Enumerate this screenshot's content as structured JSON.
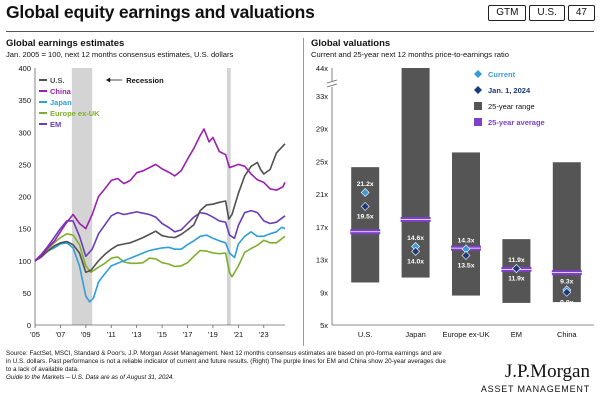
{
  "header": {
    "title": "Global equity earnings and valuations",
    "chips": [
      "GTM",
      "U.S.",
      "47"
    ]
  },
  "left_panel": {
    "title": "Global earnings estimates",
    "subtitle": "Jan. 2005 = 100, next 12 months consensus estimates, U.S. dollars"
  },
  "right_panel": {
    "title": "Global valuations",
    "subtitle": "Current and 25-year next 12 months price-to-earnings ratio"
  },
  "footer": {
    "source": "Source: FactSet, MSCI, Standard & Poor's, J.P. Morgan Asset Management. Next 12 months consensus estimates are based on pro-forma earnings and are in U.S. dollars. Past performance is not a reliable indicator of current and future results. (Right) The purple lines for EM and China show 20-year averages due to a lack of available data.",
    "guide": "Guide to the Markets – U.S. Data are as of August 31, 2024."
  },
  "logo": {
    "line1": "J.P.Morgan",
    "line2": "ASSET MANAGEMENT"
  },
  "colors": {
    "us": "#505050",
    "china": "#9b1fb0",
    "japan": "#2f9ed9",
    "europe": "#7fae2e",
    "em": "#6a3db8",
    "bar": "#555555",
    "avg": "#7e3fc9",
    "current": "#3a9ad9",
    "jan2024": "#1b3a7a",
    "recession": "#d4d4d4"
  },
  "chart_data": [
    {
      "type": "line",
      "title": "Global earnings estimates",
      "x_ticks": [
        "'05",
        "'07",
        "'09",
        "'11",
        "'13",
        "'15",
        "'17",
        "'19",
        "'21",
        "'23"
      ],
      "xlim": [
        2005,
        2024.67
      ],
      "ylim": [
        0,
        400
      ],
      "y_ticks": [
        0,
        50,
        100,
        150,
        200,
        250,
        300,
        350,
        400
      ],
      "grid": false,
      "legend_position": "top-left",
      "recession_label": "Recession",
      "recessions": [
        [
          2007.9,
          2009.5
        ],
        [
          2020.1,
          2020.4
        ]
      ],
      "series": [
        {
          "name": "U.S.",
          "key": "us",
          "points": [
            [
              2005,
              100
            ],
            [
              2005.5,
              106
            ],
            [
              2006,
              115
            ],
            [
              2006.5,
              123
            ],
            [
              2007,
              128
            ],
            [
              2007.5,
              130
            ],
            [
              2008,
              125
            ],
            [
              2008.5,
              112
            ],
            [
              2009,
              82
            ],
            [
              2009.4,
              85
            ],
            [
              2010,
              100
            ],
            [
              2010.5,
              110
            ],
            [
              2011,
              118
            ],
            [
              2011.5,
              124
            ],
            [
              2012,
              126
            ],
            [
              2012.5,
              128
            ],
            [
              2013,
              132
            ],
            [
              2013.5,
              136
            ],
            [
              2014,
              141
            ],
            [
              2014.5,
              146
            ],
            [
              2015,
              139
            ],
            [
              2015.5,
              137
            ],
            [
              2016,
              136
            ],
            [
              2016.5,
              141
            ],
            [
              2017,
              148
            ],
            [
              2017.5,
              156
            ],
            [
              2018,
              178
            ],
            [
              2018.5,
              187
            ],
            [
              2019,
              188
            ],
            [
              2019.5,
              191
            ],
            [
              2020,
              193
            ],
            [
              2020.25,
              165
            ],
            [
              2020.5,
              172
            ],
            [
              2021,
              205
            ],
            [
              2021.5,
              232
            ],
            [
              2022,
              247
            ],
            [
              2022.5,
              253
            ],
            [
              2022.75,
              242
            ],
            [
              2023,
              235
            ],
            [
              2023.5,
              242
            ],
            [
              2024,
              268
            ],
            [
              2024.67,
              282
            ]
          ]
        },
        {
          "name": "China",
          "key": "china",
          "points": [
            [
              2005,
              100
            ],
            [
              2005.5,
              108
            ],
            [
              2006,
              120
            ],
            [
              2006.5,
              130
            ],
            [
              2007,
              145
            ],
            [
              2007.5,
              160
            ],
            [
              2008,
              172
            ],
            [
              2008.5,
              158
            ],
            [
              2009,
              150
            ],
            [
              2009.5,
              172
            ],
            [
              2010,
              200
            ],
            [
              2010.5,
              212
            ],
            [
              2011,
              225
            ],
            [
              2011.5,
              228
            ],
            [
              2012,
              220
            ],
            [
              2012.5,
              225
            ],
            [
              2013,
              237
            ],
            [
              2013.5,
              240
            ],
            [
              2014,
              245
            ],
            [
              2014.5,
              250
            ],
            [
              2015,
              243
            ],
            [
              2015.5,
              238
            ],
            [
              2016,
              232
            ],
            [
              2016.5,
              240
            ],
            [
              2017,
              258
            ],
            [
              2017.5,
              275
            ],
            [
              2018,
              295
            ],
            [
              2018.3,
              305
            ],
            [
              2018.7,
              285
            ],
            [
              2019,
              292
            ],
            [
              2019.5,
              270
            ],
            [
              2020,
              265
            ],
            [
              2020.3,
              245
            ],
            [
              2021,
              250
            ],
            [
              2021.5,
              247
            ],
            [
              2022,
              235
            ],
            [
              2022.5,
              226
            ],
            [
              2023,
              222
            ],
            [
              2023.5,
              212
            ],
            [
              2024,
              210
            ],
            [
              2024.5,
              215
            ],
            [
              2024.67,
              222
            ]
          ]
        },
        {
          "name": "Japan",
          "key": "japan",
          "points": [
            [
              2005,
              100
            ],
            [
              2005.5,
              106
            ],
            [
              2006,
              115
            ],
            [
              2006.5,
              120
            ],
            [
              2007,
              126
            ],
            [
              2007.5,
              128
            ],
            [
              2008,
              120
            ],
            [
              2008.5,
              92
            ],
            [
              2009,
              45
            ],
            [
              2009.3,
              36
            ],
            [
              2009.6,
              42
            ],
            [
              2010,
              67
            ],
            [
              2010.5,
              80
            ],
            [
              2011,
              92
            ],
            [
              2011.5,
              96
            ],
            [
              2012,
              100
            ],
            [
              2012.5,
              104
            ],
            [
              2013,
              108
            ],
            [
              2013.5,
              112
            ],
            [
              2014,
              116
            ],
            [
              2014.5,
              118
            ],
            [
              2015,
              120
            ],
            [
              2015.5,
              121
            ],
            [
              2016,
              118
            ],
            [
              2016.5,
              118
            ],
            [
              2017,
              125
            ],
            [
              2017.5,
              131
            ],
            [
              2018,
              138
            ],
            [
              2018.5,
              140
            ],
            [
              2019,
              135
            ],
            [
              2019.5,
              131
            ],
            [
              2020,
              128
            ],
            [
              2020.3,
              112
            ],
            [
              2020.7,
              105
            ],
            [
              2021,
              126
            ],
            [
              2021.5,
              138
            ],
            [
              2022,
              145
            ],
            [
              2022.5,
              138
            ],
            [
              2023,
              138
            ],
            [
              2023.5,
              142
            ],
            [
              2024,
              145
            ],
            [
              2024.4,
              152
            ],
            [
              2024.67,
              150
            ]
          ]
        },
        {
          "name": "Europe ex-UK",
          "key": "europe",
          "points": [
            [
              2005,
              100
            ],
            [
              2005.5,
              108
            ],
            [
              2006,
              118
            ],
            [
              2006.5,
              128
            ],
            [
              2007,
              136
            ],
            [
              2007.5,
              142
            ],
            [
              2008,
              140
            ],
            [
              2008.5,
              125
            ],
            [
              2009,
              92
            ],
            [
              2009.4,
              82
            ],
            [
              2010,
              90
            ],
            [
              2010.5,
              96
            ],
            [
              2011,
              104
            ],
            [
              2011.5,
              106
            ],
            [
              2012,
              98
            ],
            [
              2012.5,
              96
            ],
            [
              2013,
              96
            ],
            [
              2013.5,
              97
            ],
            [
              2014,
              104
            ],
            [
              2014.5,
              103
            ],
            [
              2015,
              97
            ],
            [
              2015.5,
              95
            ],
            [
              2016,
              91
            ],
            [
              2016.5,
              92
            ],
            [
              2017,
              97
            ],
            [
              2017.5,
              107
            ],
            [
              2018,
              116
            ],
            [
              2018.5,
              115
            ],
            [
              2019,
              112
            ],
            [
              2019.5,
              111
            ],
            [
              2020,
              112
            ],
            [
              2020.3,
              82
            ],
            [
              2020.5,
              75
            ],
            [
              2021,
              92
            ],
            [
              2021.5,
              113
            ],
            [
              2022,
              119
            ],
            [
              2022.5,
              124
            ],
            [
              2023,
              132
            ],
            [
              2023.5,
              128
            ],
            [
              2024,
              128
            ],
            [
              2024.67,
              138
            ]
          ]
        },
        {
          "name": "EM",
          "key": "em",
          "points": [
            [
              2005,
              100
            ],
            [
              2005.5,
              110
            ],
            [
              2006,
              122
            ],
            [
              2006.5,
              136
            ],
            [
              2007,
              150
            ],
            [
              2007.5,
              162
            ],
            [
              2008,
              162
            ],
            [
              2008.5,
              138
            ],
            [
              2009,
              107
            ],
            [
              2009.5,
              118
            ],
            [
              2010,
              142
            ],
            [
              2010.5,
              156
            ],
            [
              2011,
              170
            ],
            [
              2011.5,
              175
            ],
            [
              2012,
              172
            ],
            [
              2012.5,
              174
            ],
            [
              2013,
              176
            ],
            [
              2013.5,
              174
            ],
            [
              2014,
              172
            ],
            [
              2014.5,
              168
            ],
            [
              2015,
              158
            ],
            [
              2015.5,
              152
            ],
            [
              2016,
              145
            ],
            [
              2016.5,
              148
            ],
            [
              2017,
              158
            ],
            [
              2017.5,
              168
            ],
            [
              2018,
              175
            ],
            [
              2018.5,
              173
            ],
            [
              2019,
              168
            ],
            [
              2019.5,
              162
            ],
            [
              2020,
              160
            ],
            [
              2020.3,
              140
            ],
            [
              2020.7,
              135
            ],
            [
              2021,
              155
            ],
            [
              2021.5,
              175
            ],
            [
              2022,
              178
            ],
            [
              2022.5,
              175
            ],
            [
              2023,
              162
            ],
            [
              2023.5,
              158
            ],
            [
              2024,
              160
            ],
            [
              2024.67,
              170
            ]
          ]
        }
      ]
    },
    {
      "type": "bar",
      "title": "Global valuations",
      "categories": [
        "U.S.",
        "Japan",
        "Europe ex-UK",
        "EM",
        "China"
      ],
      "ylim": [
        5,
        44
      ],
      "y_ticks": [
        5,
        9,
        13,
        17,
        21,
        25,
        29,
        33,
        44
      ],
      "y_tick_labels": [
        "5x",
        "9x",
        "13x",
        "17x",
        "21x",
        "25x",
        "29x",
        "33x",
        "44x"
      ],
      "axis_break": true,
      "legend_position": "top-right",
      "legend": {
        "current": "Current",
        "jan2024": "Jan. 1, 2024",
        "range": "25-year range",
        "average": "25-year average"
      },
      "ranges": [
        [
          10.2,
          24.3
        ],
        [
          10.8,
          44
        ],
        [
          8.6,
          26.1
        ],
        [
          7.7,
          15.5
        ],
        [
          7.8,
          24.9
        ]
      ],
      "averages": [
        16.4,
        17.9,
        14.4,
        11.8,
        11.4
      ],
      "current": [
        21.2,
        14.6,
        14.3,
        11.9,
        9.3
      ],
      "jan2024": [
        19.5,
        14.0,
        13.5,
        11.9,
        9.0
      ],
      "current_labels": [
        "21.2x",
        "14.6x",
        "14.3x",
        "11.9x",
        "9.3x"
      ],
      "jan2024_labels": [
        "19.5x",
        "14.0x",
        "13.5x",
        "11.9x",
        "9.0x"
      ]
    }
  ]
}
